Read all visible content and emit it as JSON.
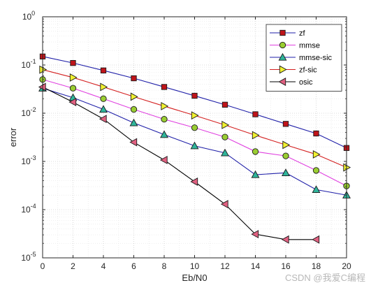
{
  "chart_data": {
    "type": "line",
    "xlabel": "Eb/N0",
    "ylabel": "error",
    "xlim": [
      0,
      20
    ],
    "ylim": [
      1e-05,
      1
    ],
    "yscale": "log",
    "grid": true,
    "minor_grid": true,
    "legend_position": "top-right",
    "x": [
      0,
      2,
      4,
      6,
      8,
      10,
      12,
      14,
      16,
      18,
      20
    ],
    "x_ticks": [
      "0",
      "2",
      "4",
      "6",
      "8",
      "10",
      "12",
      "14",
      "16",
      "18",
      "20"
    ],
    "y_ticks": [
      {
        "value": 1e-05,
        "base": "10",
        "exp": "-5"
      },
      {
        "value": 0.0001,
        "base": "10",
        "exp": "-4"
      },
      {
        "value": 0.001,
        "base": "10",
        "exp": "-3"
      },
      {
        "value": 0.01,
        "base": "10",
        "exp": "-2"
      },
      {
        "value": 0.1,
        "base": "10",
        "exp": "-1"
      },
      {
        "value": 1,
        "base": "10",
        "exp": "0"
      }
    ],
    "series": [
      {
        "name": "zf",
        "color": "#1f1fa8",
        "marker": "square",
        "marker_color": "#c0141a",
        "values": [
          0.15,
          0.11,
          0.077,
          0.053,
          0.035,
          0.023,
          0.015,
          0.0095,
          0.006,
          0.0038,
          0.0019
        ]
      },
      {
        "name": "mmse",
        "color": "#e040e0",
        "marker": "circle",
        "marker_color": "#9acd32",
        "values": [
          0.05,
          0.033,
          0.02,
          0.012,
          0.0075,
          0.005,
          0.0032,
          0.0016,
          0.0013,
          0.00065,
          0.00031
        ]
      },
      {
        "name": "mmse-sic",
        "color": "#1f1fa8",
        "marker": "triangle-up",
        "marker_color": "#2fb59b",
        "values": [
          0.033,
          0.021,
          0.012,
          0.0063,
          0.0036,
          0.0021,
          0.0015,
          0.00053,
          0.00058,
          0.00026,
          0.0002
        ]
      },
      {
        "name": "zf-sic",
        "color": "#d42020",
        "marker": "triangle-right",
        "marker_color": "#f0f030",
        "values": [
          0.08,
          0.055,
          0.035,
          0.022,
          0.014,
          0.009,
          0.0057,
          0.0035,
          0.0022,
          0.0014,
          0.00075
        ]
      },
      {
        "name": "osic",
        "color": "#000000",
        "marker": "triangle-left",
        "marker_color": "#e06080",
        "x": [
          0,
          2,
          4,
          6,
          8,
          10,
          12,
          14,
          16,
          18
        ],
        "values": [
          0.035,
          0.017,
          0.0076,
          0.0025,
          0.00107,
          0.00038,
          0.00013,
          3.1e-05,
          2.4e-05,
          2.4e-05
        ]
      }
    ]
  },
  "watermark": "CSDN @我爱C编程"
}
